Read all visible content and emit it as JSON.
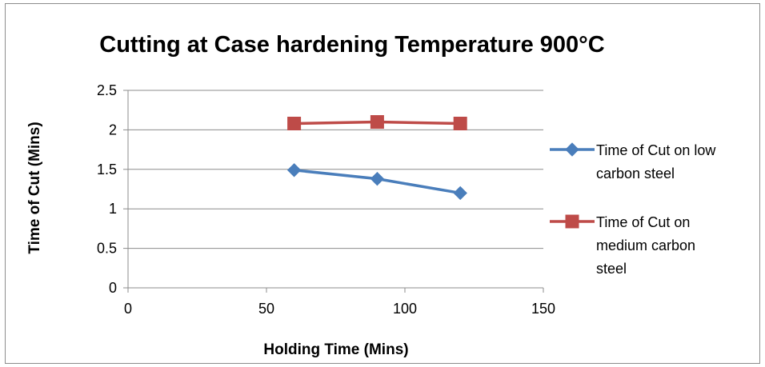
{
  "chart_data": {
    "type": "line",
    "title": "Cutting at Case hardening Temperature 900°C",
    "xlabel": "Holding Time (Mins)",
    "ylabel": "Time of Cut (Mins)",
    "xlim": [
      0,
      150
    ],
    "ylim": [
      0,
      2.5
    ],
    "x_ticks": [
      "0",
      "50",
      "100",
      "150"
    ],
    "y_ticks": [
      "0",
      "0.5",
      "1",
      "1.5",
      "2",
      "2.5"
    ],
    "grid": "horizontal",
    "legend_position": "right",
    "series": [
      {
        "name": "Time of Cut on low carbon steel",
        "legend_lines": [
          "Time of Cut on low",
          "carbon steel"
        ],
        "marker": "diamond",
        "color": "#4a7ebb",
        "x": [
          60,
          90,
          120
        ],
        "y": [
          1.49,
          1.38,
          1.2
        ]
      },
      {
        "name": "Time of Cut on medium carbon steel",
        "legend_lines": [
          "Time of Cut on",
          "medium carbon",
          "steel"
        ],
        "marker": "square",
        "color": "#be4b48",
        "x": [
          60,
          90,
          120
        ],
        "y": [
          2.08,
          2.1,
          2.08
        ]
      }
    ]
  }
}
